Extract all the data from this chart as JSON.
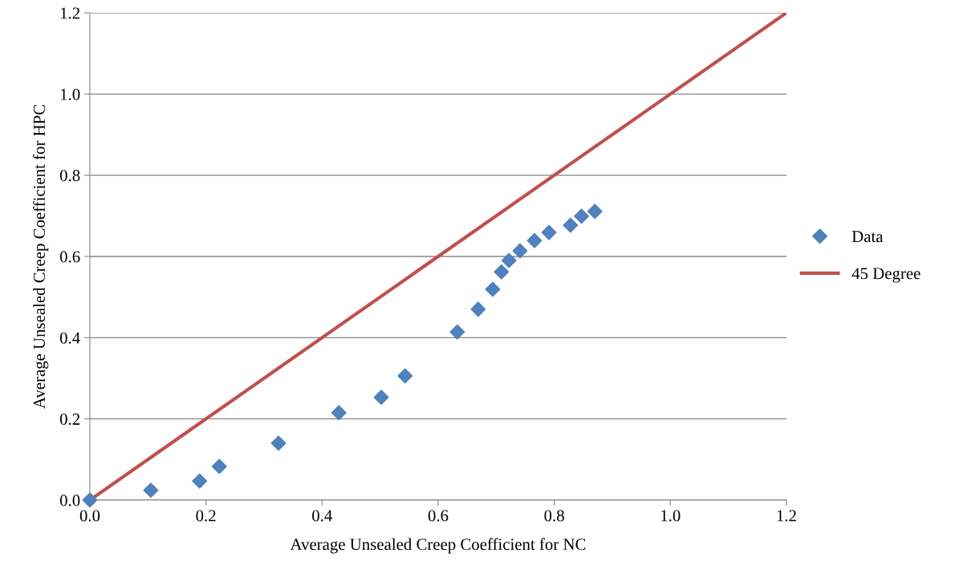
{
  "chart_data": {
    "type": "scatter",
    "xlabel": "Average Unsealed Creep Coefficient for NC",
    "ylabel": "Average Unsealed Creep Coefficient for HPC",
    "xlim": [
      0,
      1.2
    ],
    "ylim": [
      0,
      1.2
    ],
    "xticks": [
      {
        "value": 0,
        "label": "0.0"
      },
      {
        "value": 0.2,
        "label": "0.2"
      },
      {
        "value": 0.4,
        "label": "0.4"
      },
      {
        "value": 0.6,
        "label": "0.6"
      },
      {
        "value": 0.8,
        "label": "0.8"
      },
      {
        "value": 1.0,
        "label": "1.0"
      },
      {
        "value": 1.2,
        "label": "1.2"
      }
    ],
    "yticks": [
      {
        "value": 0,
        "label": "0.0"
      },
      {
        "value": 0.2,
        "label": "0.2"
      },
      {
        "value": 0.4,
        "label": "0.4"
      },
      {
        "value": 0.6,
        "label": "0.6"
      },
      {
        "value": 0.8,
        "label": "0.8"
      },
      {
        "value": 1.0,
        "label": "1.0"
      },
      {
        "value": 1.2,
        "label": "1.2"
      }
    ],
    "grid": "y",
    "legend": "right",
    "series": [
      {
        "name": "Data",
        "marker": "diamond",
        "color": "#4f81bd",
        "x": [
          0,
          0.105,
          0.189,
          0.223,
          0.325,
          0.429,
          0.502,
          0.543,
          0.633,
          0.669,
          0.694,
          0.709,
          0.722,
          0.741,
          0.766,
          0.791,
          0.828,
          0.847,
          0.87
        ],
        "values": [
          0,
          0.024,
          0.047,
          0.083,
          0.14,
          0.215,
          0.253,
          0.306,
          0.414,
          0.47,
          0.519,
          0.562,
          0.59,
          0.614,
          0.639,
          0.659,
          0.677,
          0.699,
          0.711
        ]
      },
      {
        "name": "45 Degree",
        "type": "line",
        "line_style": "solid",
        "color": "#c0504d",
        "x": [
          0,
          1.2
        ],
        "values": [
          0,
          1.2
        ]
      }
    ]
  }
}
